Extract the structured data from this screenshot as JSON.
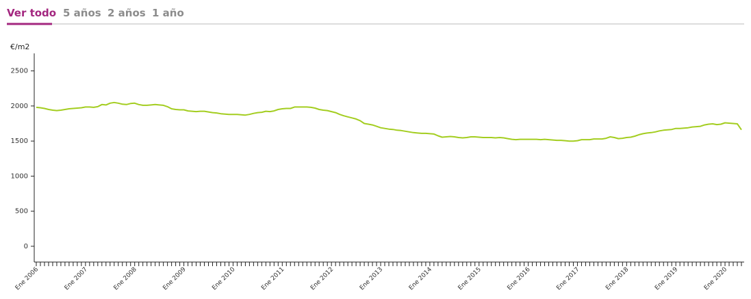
{
  "tabs": [
    "Ver todo",
    "5 años",
    "2 años",
    "1 año"
  ],
  "chart_data": {
    "type": "line",
    "y_label": "€/m2",
    "categories": [
      "Ene 2006",
      null,
      null,
      null,
      null,
      null,
      null,
      null,
      null,
      null,
      null,
      null,
      "Ene 2007",
      null,
      null,
      null,
      null,
      null,
      null,
      null,
      null,
      null,
      null,
      null,
      "Ene 2008",
      null,
      null,
      null,
      null,
      null,
      null,
      null,
      null,
      null,
      null,
      null,
      "Ene 2009",
      null,
      null,
      null,
      null,
      null,
      null,
      null,
      null,
      null,
      null,
      null,
      "Ene 2010",
      null,
      null,
      null,
      null,
      null,
      null,
      null,
      null,
      null,
      null,
      null,
      "Ene 2011",
      null,
      null,
      null,
      null,
      null,
      null,
      null,
      null,
      null,
      null,
      null,
      "Ene 2012",
      null,
      null,
      null,
      null,
      null,
      null,
      null,
      null,
      null,
      null,
      null,
      "Ene 2013",
      null,
      null,
      null,
      null,
      null,
      null,
      null,
      null,
      null,
      null,
      null,
      "Ene 2014",
      null,
      null,
      null,
      null,
      null,
      null,
      null,
      null,
      null,
      null,
      null,
      "Ene 2015",
      null,
      null,
      null,
      null,
      null,
      null,
      null,
      null,
      null,
      null,
      null,
      "Ene 2016",
      null,
      null,
      null,
      null,
      null,
      null,
      null,
      null,
      null,
      null,
      null,
      "Ene 2017",
      null,
      null,
      null,
      null,
      null,
      null,
      null,
      null,
      null,
      null,
      null,
      "Ene 2018",
      null,
      null,
      null,
      null,
      null,
      null,
      null,
      null,
      null,
      null,
      null,
      "Ene 2019",
      null,
      null,
      null,
      null,
      null,
      null,
      null,
      null,
      null,
      null,
      null,
      "Ene 2020",
      null,
      null,
      null,
      null
    ],
    "series": [
      {
        "color": "#a3cd1f",
        "values": [
          1980,
          1975,
          1965,
          1950,
          1940,
          1935,
          1940,
          1950,
          1960,
          1965,
          1970,
          1975,
          1985,
          1985,
          1980,
          1990,
          2020,
          2015,
          2040,
          2050,
          2040,
          2025,
          2020,
          2035,
          2040,
          2020,
          2010,
          2010,
          2015,
          2020,
          2015,
          2010,
          1990,
          1960,
          1950,
          1945,
          1945,
          1930,
          1925,
          1920,
          1925,
          1925,
          1915,
          1905,
          1900,
          1890,
          1885,
          1880,
          1880,
          1880,
          1875,
          1870,
          1880,
          1895,
          1905,
          1910,
          1925,
          1920,
          1930,
          1950,
          1960,
          1965,
          1965,
          1985,
          1985,
          1985,
          1985,
          1980,
          1970,
          1950,
          1940,
          1935,
          1920,
          1905,
          1880,
          1860,
          1845,
          1830,
          1815,
          1790,
          1750,
          1740,
          1730,
          1710,
          1690,
          1680,
          1670,
          1665,
          1655,
          1650,
          1640,
          1630,
          1620,
          1615,
          1610,
          1610,
          1605,
          1600,
          1575,
          1555,
          1560,
          1565,
          1560,
          1550,
          1545,
          1550,
          1560,
          1560,
          1555,
          1550,
          1550,
          1550,
          1545,
          1550,
          1545,
          1535,
          1525,
          1520,
          1525,
          1525,
          1525,
          1525,
          1525,
          1520,
          1525,
          1520,
          1515,
          1510,
          1510,
          1505,
          1500,
          1500,
          1505,
          1520,
          1520,
          1520,
          1530,
          1530,
          1530,
          1540,
          1560,
          1550,
          1535,
          1540,
          1550,
          1555,
          1570,
          1590,
          1605,
          1615,
          1620,
          1630,
          1645,
          1655,
          1660,
          1665,
          1680,
          1680,
          1685,
          1690,
          1700,
          1705,
          1710,
          1730,
          1740,
          1745,
          1735,
          1740,
          1760,
          1755,
          1750,
          1745,
          1660
        ]
      }
    ],
    "ylim": [
      -225,
      2750
    ],
    "yticks": [
      0,
      500,
      1000,
      1500,
      2000,
      2500
    ]
  }
}
